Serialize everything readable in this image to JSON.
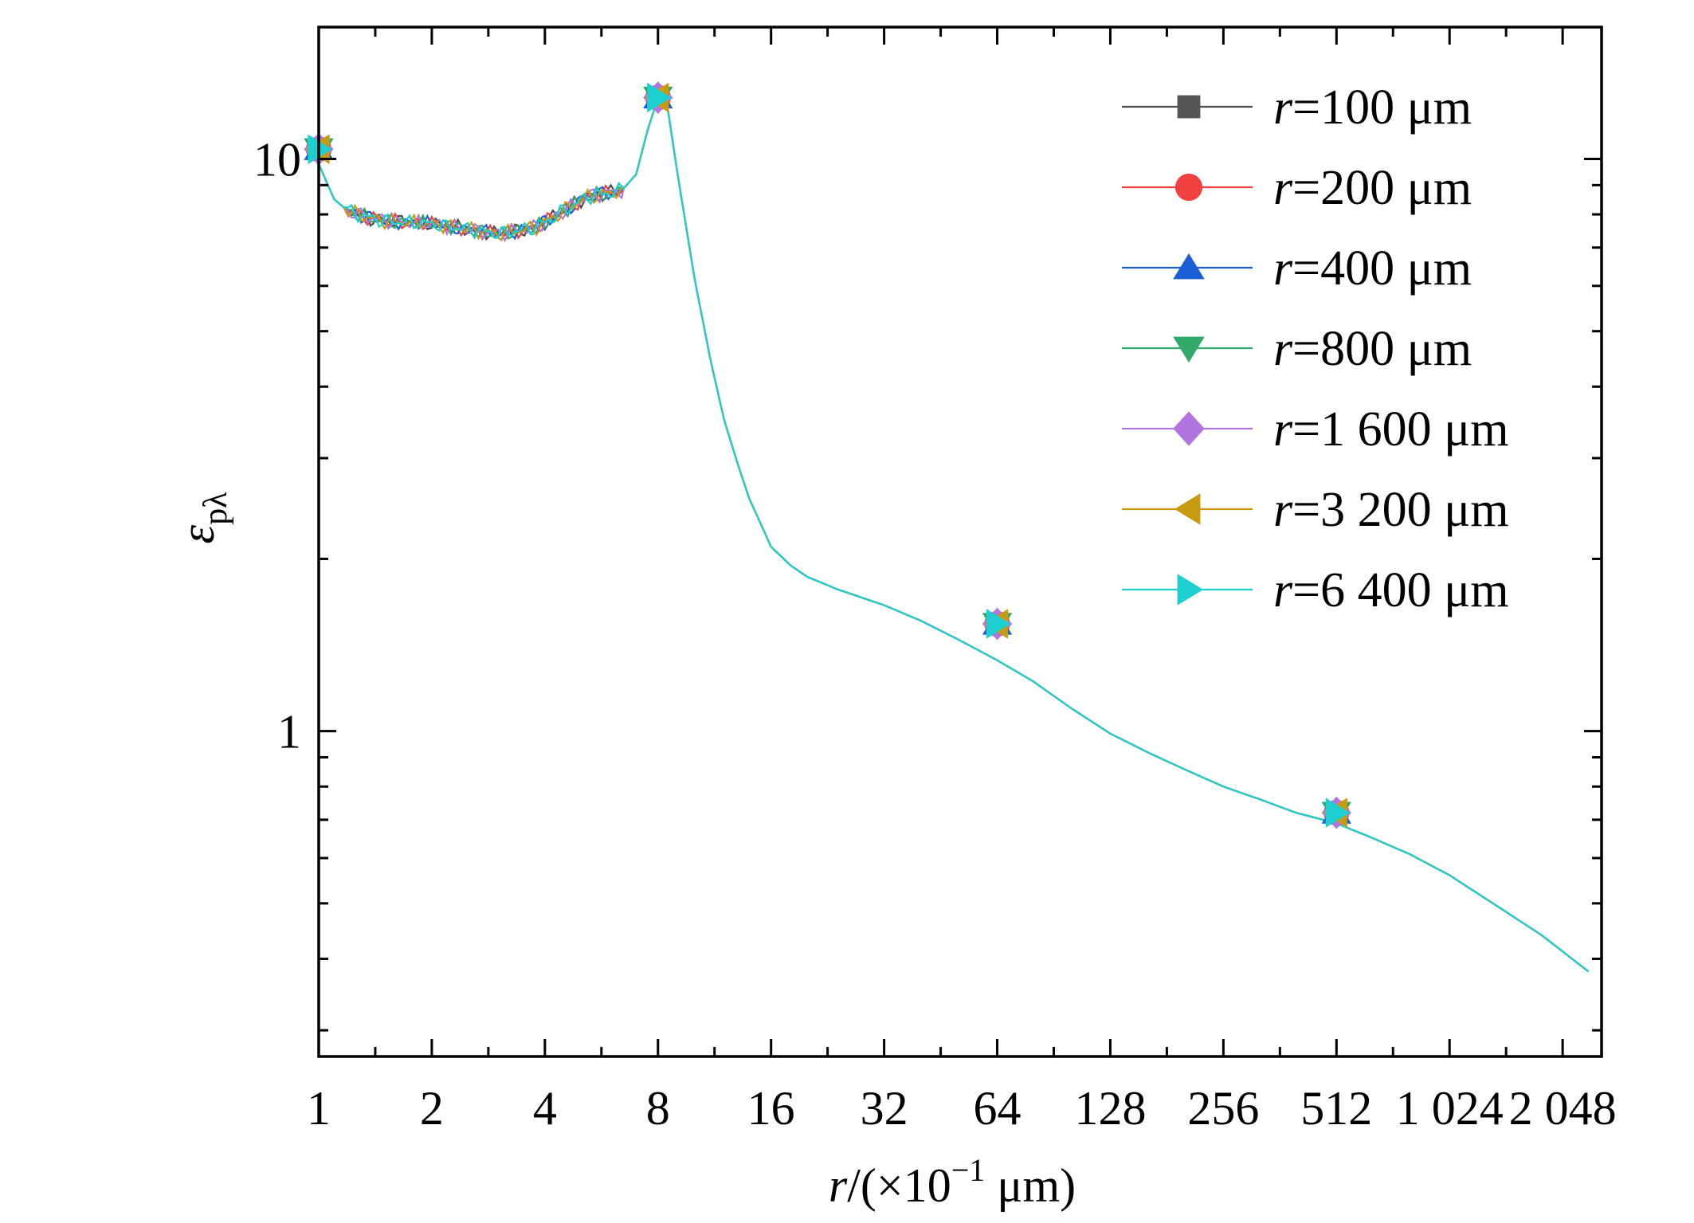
{
  "chart_data": {
    "type": "line",
    "x_scale": "log2",
    "y_scale": "log10",
    "xlim": [
      1,
      2600
    ],
    "ylim": [
      0.27,
      17
    ],
    "x_ticks": [
      1,
      2,
      4,
      8,
      16,
      32,
      64,
      128,
      256,
      512,
      1024,
      2048
    ],
    "x_tick_labels": [
      "1",
      "2",
      "4",
      "8",
      "16",
      "32",
      "64",
      "128",
      "256",
      "512",
      "1 024",
      "2 048"
    ],
    "y_ticks": [
      1,
      10
    ],
    "y_tick_labels": [
      "1",
      "10"
    ],
    "xlabel": {
      "var": "r",
      "pre": "/(×10",
      "sup": "−1",
      "post": " μm)"
    },
    "ylabel": {
      "symbol": "ε",
      "sub": "pλ"
    },
    "grid": false,
    "legend_position": "top-right",
    "curve": {
      "x": [
        1,
        1.1,
        1.2,
        1.35,
        1.5,
        1.7,
        2,
        2.3,
        2.6,
        3,
        3.4,
        3.8,
        4.2,
        4.6,
        5.2,
        5.8,
        6.4,
        7,
        7.5,
        8,
        8.5,
        9,
        10,
        11,
        12,
        13,
        14,
        16,
        18,
        20,
        24,
        28,
        32,
        40,
        50,
        64,
        80,
        100,
        128,
        160,
        200,
        256,
        320,
        400,
        512,
        640,
        800,
        1024,
        1400,
        1800,
        2400
      ],
      "y": [
        9.8,
        8.5,
        8.1,
        7.9,
        7.8,
        7.75,
        7.7,
        7.6,
        7.5,
        7.4,
        7.5,
        7.6,
        7.9,
        8.2,
        8.6,
        8.7,
        8.8,
        9.4,
        11.2,
        12.8,
        12.2,
        9.5,
        6.2,
        4.5,
        3.5,
        2.95,
        2.55,
        2.1,
        1.95,
        1.86,
        1.77,
        1.71,
        1.66,
        1.56,
        1.45,
        1.33,
        1.22,
        1.1,
        0.99,
        0.92,
        0.86,
        0.8,
        0.76,
        0.72,
        0.69,
        0.65,
        0.61,
        0.56,
        0.49,
        0.44,
        0.38
      ]
    },
    "series": [
      {
        "name": "r=100 μm",
        "label_var": "r",
        "label_rest": "=100 μm",
        "color": "#555555",
        "line_color": "#4a4a4a",
        "marker": "square",
        "points": [
          [
            1,
            10.4
          ],
          [
            8,
            12.8
          ],
          [
            64,
            1.54
          ],
          [
            512,
            0.72
          ]
        ]
      },
      {
        "name": "r=200 μm",
        "label_var": "r",
        "label_rest": "=200 μm",
        "color": "#f04040",
        "line_color": "#f04040",
        "marker": "circle",
        "points": [
          [
            1,
            10.4
          ],
          [
            8,
            12.8
          ],
          [
            64,
            1.54
          ],
          [
            512,
            0.72
          ]
        ]
      },
      {
        "name": "r=400 μm",
        "label_var": "r",
        "label_rest": "=400 μm",
        "color": "#1a5fd6",
        "line_color": "#1a5fd6",
        "marker": "triangle-up",
        "points": [
          [
            1,
            10.4
          ],
          [
            8,
            12.8
          ],
          [
            64,
            1.54
          ],
          [
            512,
            0.72
          ]
        ]
      },
      {
        "name": "r=800 μm",
        "label_var": "r",
        "label_rest": "=800 μm",
        "color": "#2fa868",
        "line_color": "#2fa868",
        "marker": "triangle-down",
        "points": [
          [
            1,
            10.4
          ],
          [
            8,
            12.8
          ],
          [
            64,
            1.54
          ],
          [
            512,
            0.72
          ]
        ]
      },
      {
        "name": "r=1 600 μm",
        "label_var": "r",
        "label_rest": "=1 600 μm",
        "color": "#b275e0",
        "line_color": "#b275e0",
        "marker": "diamond",
        "points": [
          [
            1,
            10.4
          ],
          [
            8,
            12.8
          ],
          [
            64,
            1.54
          ],
          [
            512,
            0.72
          ]
        ]
      },
      {
        "name": "r=3 200 μm",
        "label_var": "r",
        "label_rest": "=3 200 μm",
        "color": "#c79a10",
        "line_color": "#c79a10",
        "marker": "triangle-left",
        "points": [
          [
            1,
            10.4
          ],
          [
            8,
            12.8
          ],
          [
            64,
            1.54
          ],
          [
            512,
            0.72
          ]
        ]
      },
      {
        "name": "r=6 400 μm",
        "label_var": "r",
        "label_rest": "=6 400 μm",
        "color": "#1ecfd0",
        "line_color": "#1ecfd0",
        "marker": "triangle-right",
        "points": [
          [
            1,
            10.4
          ],
          [
            8,
            12.8
          ],
          [
            64,
            1.54
          ],
          [
            512,
            0.72
          ]
        ]
      }
    ]
  }
}
